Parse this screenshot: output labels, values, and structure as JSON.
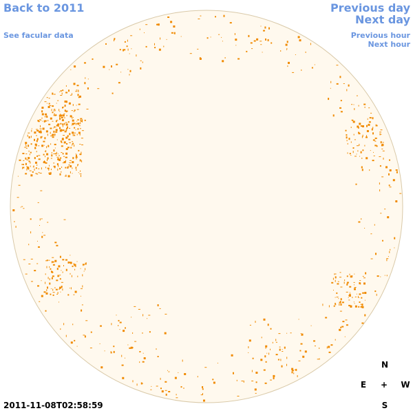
{
  "header": {
    "back_link": "Back to 2011",
    "facular_link": "See facular data",
    "previous_day": "Previous day",
    "next_day": "Next day",
    "previous_hour": "Previous hour",
    "next_hour": "Next hour"
  },
  "timestamp": "2011-11-08T02:58:59",
  "compass": {
    "north": "N",
    "east": "E",
    "center": "+",
    "west": "W",
    "south": "S"
  }
}
